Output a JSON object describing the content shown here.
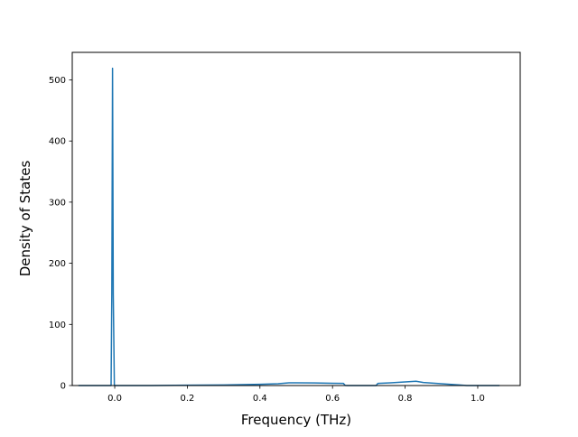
{
  "chart_data": {
    "type": "line",
    "title": "",
    "xlabel": "Frequency (THz)",
    "ylabel": "Density of States",
    "xlim": [
      -0.117,
      1.117
    ],
    "ylim": [
      0,
      545
    ],
    "grid": false,
    "x_ticks": [
      "0.0",
      "0.2",
      "0.4",
      "0.6",
      "0.8",
      "1.0"
    ],
    "y_ticks": [
      "0",
      "100",
      "200",
      "300",
      "400",
      "500"
    ],
    "x_tick_values": [
      0.0,
      0.2,
      0.4,
      0.6,
      0.8,
      1.0
    ],
    "y_tick_values": [
      0,
      100,
      200,
      300,
      400,
      500
    ],
    "series": [
      {
        "color": "#1f77b4",
        "x": [
          -0.1,
          -0.05,
          -0.015,
          -0.01,
          -0.008,
          -0.006,
          -0.004,
          -0.001,
          0.002,
          0.05,
          0.1,
          0.2,
          0.3,
          0.4,
          0.45,
          0.48,
          0.5,
          0.55,
          0.6,
          0.63,
          0.635,
          0.64,
          0.7,
          0.72,
          0.725,
          0.76,
          0.8,
          0.83,
          0.85,
          0.9,
          0.95,
          0.97,
          1.0,
          1.06
        ],
        "y": [
          0,
          0,
          0,
          0,
          150,
          519,
          150,
          0,
          0,
          0,
          0,
          0.5,
          1.0,
          2.0,
          3.0,
          4.5,
          4.5,
          4.2,
          3.7,
          3.5,
          0.2,
          0,
          0,
          0,
          3.5,
          4.5,
          6.0,
          7.0,
          5.0,
          3.0,
          1.0,
          0,
          0,
          0
        ]
      }
    ]
  }
}
